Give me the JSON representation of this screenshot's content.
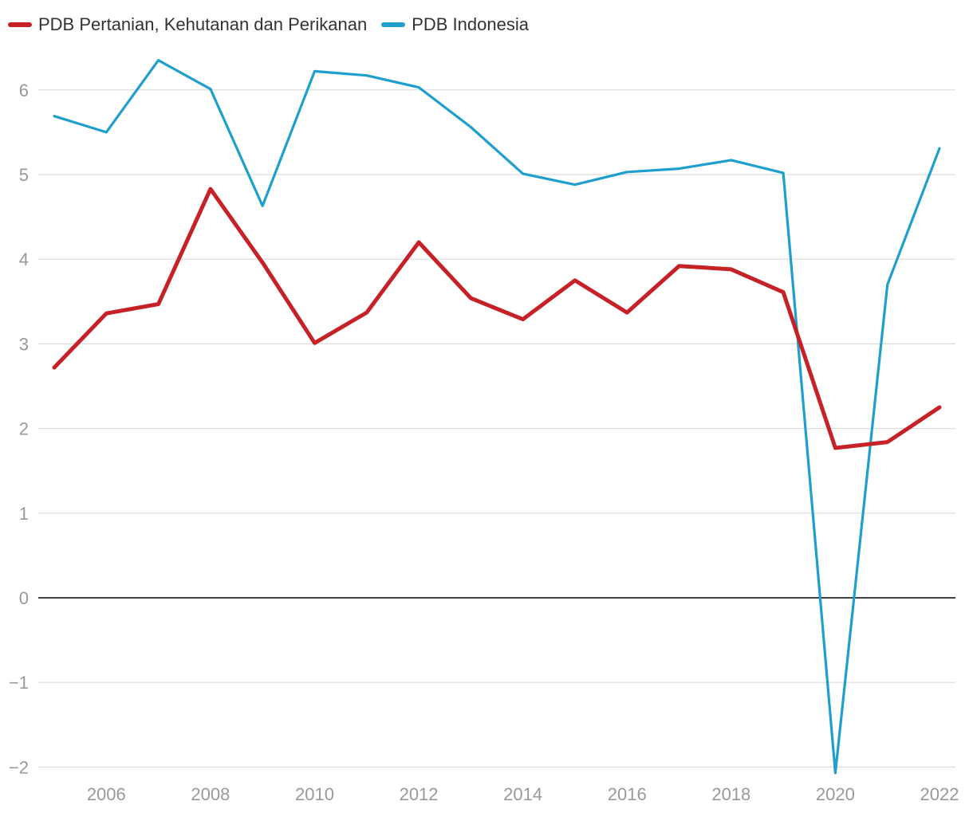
{
  "chart_data": {
    "type": "line",
    "title": "",
    "xlabel": "",
    "ylabel": "",
    "x": [
      2005,
      2006,
      2007,
      2008,
      2009,
      2010,
      2011,
      2012,
      2013,
      2014,
      2015,
      2016,
      2017,
      2018,
      2019,
      2020,
      2021,
      2022
    ],
    "x_ticks": [
      2006,
      2008,
      2010,
      2012,
      2014,
      2016,
      2018,
      2020,
      2022
    ],
    "y_ticks": [
      -2,
      -1,
      0,
      1,
      2,
      3,
      4,
      5,
      6
    ],
    "y_tick_labels": [
      "−2",
      "−1",
      "0",
      "1",
      "2",
      "3",
      "4",
      "5",
      "6"
    ],
    "ylim": [
      -2.1,
      6.6
    ],
    "xlim": [
      2004.7,
      2022.3
    ],
    "grid": true,
    "legend_position": "top-left",
    "series": [
      {
        "name": "PDB Pertanian, Kehutanan dan Perikanan",
        "color": "#c62127",
        "values": [
          2.72,
          3.36,
          3.47,
          4.83,
          3.96,
          3.01,
          3.37,
          4.2,
          3.54,
          3.29,
          3.75,
          3.37,
          3.92,
          3.88,
          3.61,
          1.77,
          1.84,
          2.25
        ]
      },
      {
        "name": "PDB Indonesia",
        "color": "#1f9fcd",
        "values": [
          5.69,
          5.5,
          6.35,
          6.01,
          4.63,
          6.22,
          6.17,
          6.03,
          5.56,
          5.01,
          4.88,
          5.03,
          5.07,
          5.17,
          5.02,
          -2.07,
          3.7,
          5.31
        ]
      }
    ]
  }
}
